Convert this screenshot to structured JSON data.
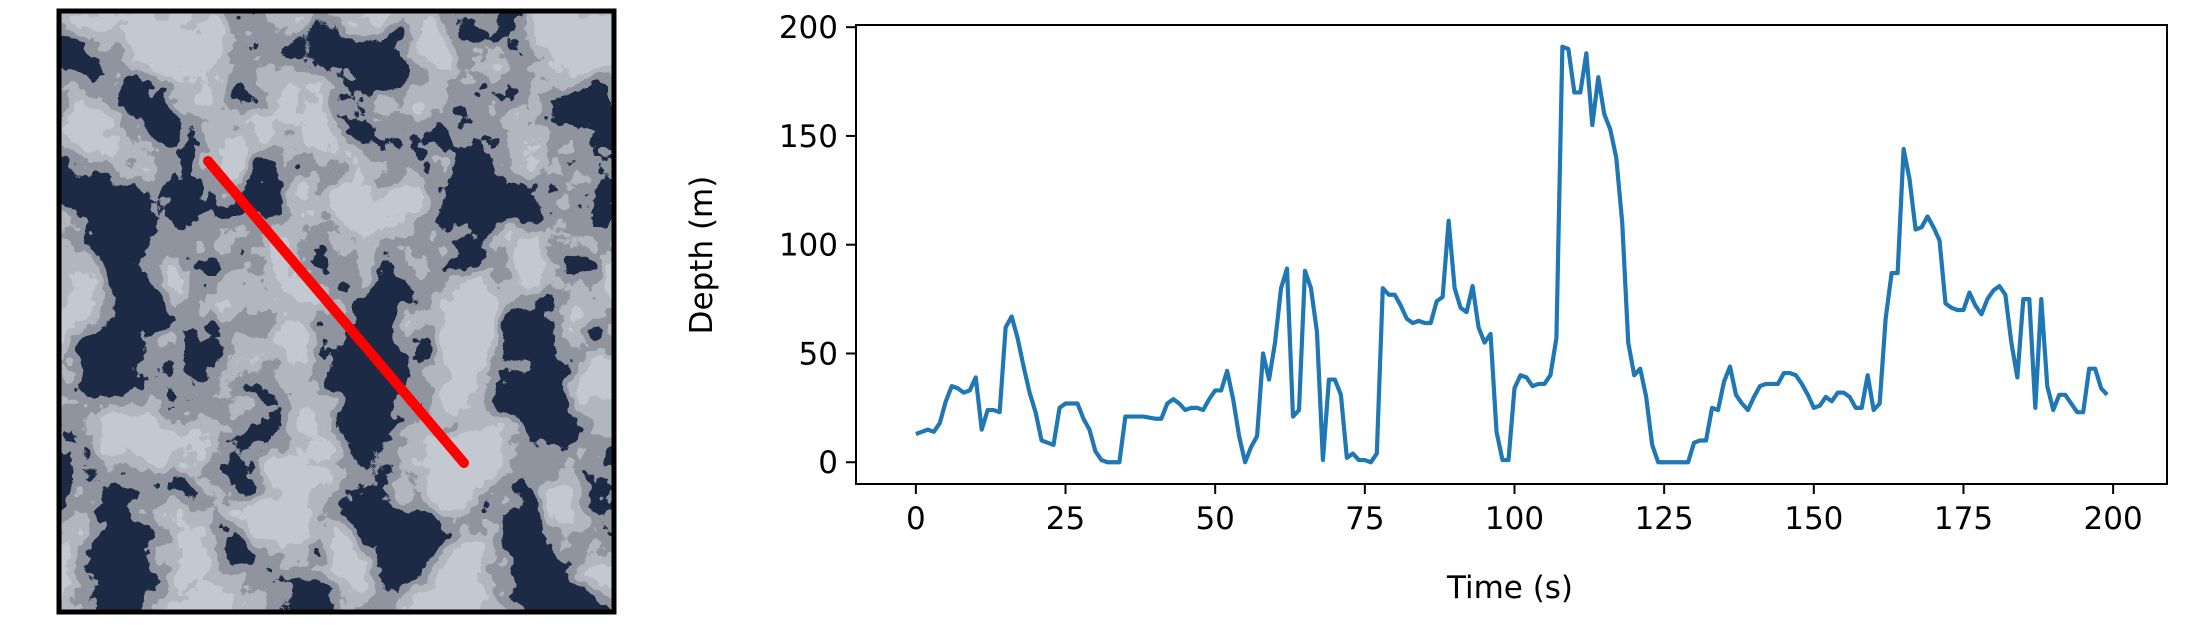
{
  "chart_data": {
    "type": "line",
    "xlabel": "Time (s)",
    "ylabel": "Depth (m)",
    "color": "#1f77b4",
    "x": [
      0,
      1,
      2,
      3,
      4,
      5,
      6,
      7,
      8,
      9,
      10,
      11,
      12,
      13,
      14,
      15,
      16,
      17,
      18,
      19,
      20,
      21,
      22,
      23,
      24,
      25,
      26,
      27,
      28,
      29,
      30,
      31,
      32,
      33,
      34,
      35,
      36,
      38,
      40,
      41,
      42,
      43,
      44,
      45,
      46,
      47,
      48,
      49,
      50,
      51,
      52,
      53,
      54,
      55,
      56,
      57,
      58,
      59,
      60,
      61,
      62,
      63,
      64,
      65,
      66,
      67,
      68,
      69,
      70,
      71,
      72,
      73,
      74,
      75,
      76,
      77,
      78,
      79,
      80,
      81,
      82,
      83,
      84,
      85,
      86,
      87,
      88,
      89,
      90,
      91,
      92,
      93,
      94,
      95,
      96,
      97,
      98,
      99,
      100,
      101,
      102,
      103,
      104,
      105,
      106,
      107,
      108,
      109,
      110,
      111,
      112,
      113,
      114,
      115,
      116,
      117,
      118,
      119,
      120,
      121,
      122,
      123,
      124,
      125,
      126,
      127,
      128,
      129,
      130,
      131,
      132,
      133,
      134,
      135,
      136,
      137,
      138,
      139,
      140,
      141,
      142,
      143,
      144,
      145,
      146,
      147,
      148,
      149,
      150,
      151,
      152,
      153,
      154,
      155,
      156,
      157,
      158,
      159,
      160,
      161,
      162,
      163,
      164,
      165,
      166,
      167,
      168,
      169,
      170,
      171,
      172,
      173,
      174,
      175,
      176,
      177,
      178,
      179,
      180,
      181,
      182,
      183,
      184,
      185,
      186,
      187,
      188,
      189,
      190,
      191,
      192,
      193,
      194,
      195,
      196,
      197,
      198,
      199
    ],
    "values": [
      13,
      14,
      15,
      14,
      18,
      28,
      35,
      34,
      32,
      33,
      39,
      15,
      24,
      24,
      23,
      62,
      67,
      57,
      44,
      32,
      23,
      10,
      9,
      8,
      25,
      27,
      27,
      27,
      20,
      15,
      5,
      1,
      0,
      0,
      0,
      21,
      21,
      21,
      20,
      20,
      27,
      29,
      27,
      24,
      25,
      25,
      24,
      29,
      33,
      33,
      42,
      29,
      12,
      0,
      7,
      12,
      50,
      38,
      55,
      80,
      89,
      21,
      24,
      88,
      80,
      60,
      1,
      38,
      38,
      31,
      2,
      4,
      1,
      1,
      0,
      4,
      80,
      77,
      77,
      72,
      66,
      64,
      65,
      64,
      64,
      74,
      76,
      111,
      80,
      71,
      69,
      81,
      62,
      55,
      59,
      14,
      1,
      1,
      34,
      40,
      39,
      35,
      36,
      36,
      40,
      57,
      191,
      190,
      170,
      170,
      188,
      155,
      177,
      160,
      153,
      140,
      110,
      55,
      40,
      43,
      30,
      8,
      0,
      0,
      0,
      0,
      0,
      0,
      9,
      10,
      10,
      25,
      24,
      37,
      44,
      31,
      27,
      24,
      30,
      35,
      36,
      36,
      36,
      41,
      41,
      40,
      36,
      31,
      25,
      26,
      30,
      28,
      32,
      32,
      30,
      25,
      25,
      40,
      24,
      27,
      66,
      87,
      87,
      144,
      130,
      107,
      108,
      113,
      108,
      102,
      73,
      71,
      70,
      70,
      78,
      72,
      68,
      75,
      79,
      81,
      77,
      55,
      39,
      75,
      75,
      25,
      75,
      35,
      24,
      31,
      31,
      27,
      23,
      23,
      43,
      43,
      34,
      31
    ],
    "xlim": [
      -10,
      209
    ],
    "ylim": [
      -10,
      201
    ],
    "xticks": [
      0,
      25,
      50,
      75,
      100,
      125,
      150,
      175,
      200
    ],
    "yticks": [
      0,
      50,
      100,
      150,
      200
    ],
    "grid": false
  }
}
